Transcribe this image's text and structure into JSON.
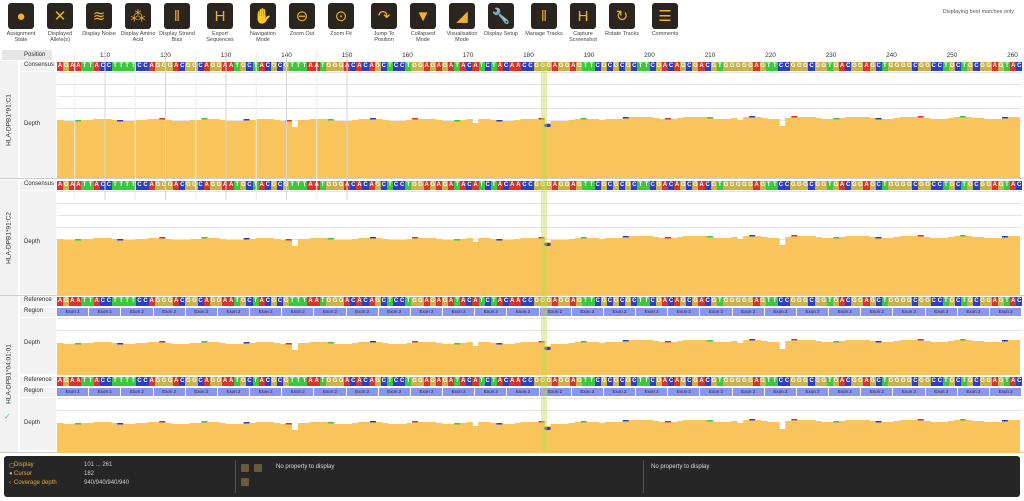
{
  "toolbar": [
    {
      "label": "Assignment State",
      "icon": "traffic-light-icon",
      "glyph": "●"
    },
    {
      "label": "Displayed Allele(s)",
      "icon": "dna-icon",
      "glyph": "✕"
    },
    {
      "label": "Display Noise",
      "icon": "noise-icon",
      "glyph": "≋"
    },
    {
      "label": "Display Amino Acid",
      "icon": "molecule-icon",
      "glyph": "⁂"
    },
    {
      "label": "Display Strand Bias",
      "icon": "bars-icon",
      "glyph": "‖"
    },
    {
      "label": "Export Sequences",
      "icon": "export-icon",
      "glyph": "H"
    },
    {
      "label": "Navigation Mode",
      "icon": "hand-icon",
      "glyph": "✋"
    },
    {
      "label": "Zoom Out",
      "icon": "zoom-out-icon",
      "glyph": "⊖"
    },
    {
      "label": "Zoom Fit",
      "icon": "zoom-fit-icon",
      "glyph": "⊙"
    },
    {
      "label": "Jump To Position",
      "icon": "jump-icon",
      "glyph": "↷"
    },
    {
      "label": "Collapsed Mode",
      "icon": "collapse-icon",
      "glyph": "▼"
    },
    {
      "label": "Visualisation Mode",
      "icon": "area-chart-icon",
      "glyph": "◢"
    },
    {
      "label": "Display Setup",
      "icon": "wrench-icon",
      "glyph": "🔧"
    },
    {
      "label": "Manage Tracks",
      "icon": "tracks-icon",
      "glyph": "‖"
    },
    {
      "label": "Capture Screenshot",
      "icon": "camera-icon",
      "glyph": "H"
    },
    {
      "label": "Rotate Tracks",
      "icon": "rotate-icon",
      "glyph": "↻"
    },
    {
      "label": "Comments",
      "icon": "comment-icon",
      "glyph": "☰"
    }
  ],
  "note": "Displaying best matches only",
  "position_label": "Position",
  "ticks": [
    "110",
    "120",
    "130",
    "140",
    "150",
    "160",
    "170",
    "180",
    "190",
    "200",
    "210",
    "220",
    "230",
    "240",
    "250",
    "260"
  ],
  "sequence": "AGAATTACCTTTTCCAGGGACGGCAGGAATGCTACGCGTTTAATGGGACACAGCTCCTGGAGAGATACATCTACAACCGGGAGGAGTTCGCGCGCTTCGACAGCGACGTGGGGGAGTTCCGGGCGGTGACGGAGCTGGGGCGGCCTGCTGCGGAGTAC",
  "tracks": [
    {
      "name": "HLA-DPB1*91:C1",
      "row1": "Consensus",
      "depth": "Depth"
    },
    {
      "name": "HLA-DPB1*91:C2",
      "row1": "Consensus",
      "depth": "Depth"
    },
    {
      "name": "HLA-DPB1*04:01:01",
      "reference": "Reference",
      "region": "Region",
      "depth": "Depth",
      "region_label": "Exon 2"
    }
  ],
  "colors": {
    "A": "#d8342c",
    "C": "#2e3fbf",
    "G": "#c9b24a",
    "T": "#3cc83c",
    "depth": "#f9c45c",
    "highlight": "#bedc50"
  },
  "status": {
    "display_label": "Display",
    "display_value": "101 ... 261",
    "cursor_label": "Cursor",
    "cursor_value": "182",
    "coverage_label": "Coverage depth",
    "coverage_value": "940/940/940/940",
    "property1": "No property to display",
    "property2": "No property to display"
  }
}
